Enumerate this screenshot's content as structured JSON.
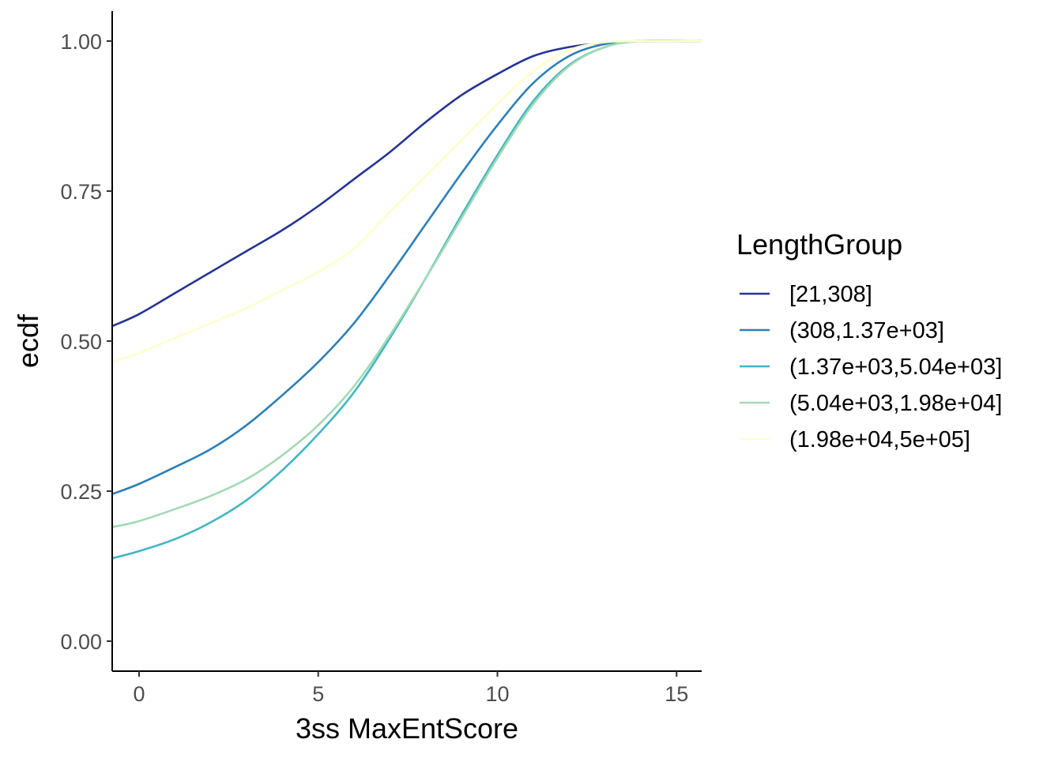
{
  "chart_data": {
    "type": "line",
    "title": "",
    "xlabel": "3ss MaxEntScore",
    "ylabel": "ecdf",
    "xlim": [
      -0.75,
      15.7
    ],
    "ylim": [
      -0.05,
      1.05
    ],
    "x_ticks": [
      0,
      5,
      10,
      15
    ],
    "x_tick_labels": [
      "0",
      "5",
      "10",
      "15"
    ],
    "y_ticks": [
      0,
      0.25,
      0.5,
      0.75,
      1.0
    ],
    "y_tick_labels": [
      "0.00",
      "0.25",
      "0.50",
      "0.75",
      "1.00"
    ],
    "grid": false,
    "legend": {
      "title": "LengthGroup",
      "position": "right"
    },
    "series": [
      {
        "name": "[21,308]",
        "color": "#253494",
        "x": [
          -0.75,
          0,
          1,
          2,
          3,
          4,
          5,
          6,
          7,
          8,
          9,
          10,
          11,
          12,
          13,
          14,
          15.7
        ],
        "y": [
          0.525,
          0.545,
          0.58,
          0.615,
          0.65,
          0.685,
          0.725,
          0.77,
          0.815,
          0.865,
          0.91,
          0.945,
          0.975,
          0.99,
          0.997,
          1.0,
          1.0
        ]
      },
      {
        "name": "(308,1.37e+03]",
        "color": "#2c7fb8",
        "x": [
          -0.75,
          0,
          1,
          2,
          3,
          4,
          5,
          6,
          7,
          8,
          9,
          10,
          11,
          12,
          13,
          14,
          15.7
        ],
        "y": [
          0.245,
          0.262,
          0.29,
          0.32,
          0.36,
          0.41,
          0.465,
          0.53,
          0.61,
          0.695,
          0.78,
          0.86,
          0.93,
          0.975,
          0.995,
          1.0,
          1.0
        ]
      },
      {
        "name": "(1.37e+03,5.04e+03]",
        "color": "#41b6c4",
        "x": [
          -0.75,
          0,
          1,
          2,
          3,
          4,
          5,
          6,
          7,
          8,
          9,
          10,
          11,
          12,
          13,
          14,
          15.7
        ],
        "y": [
          0.138,
          0.15,
          0.17,
          0.198,
          0.235,
          0.285,
          0.345,
          0.415,
          0.505,
          0.605,
          0.71,
          0.81,
          0.9,
          0.96,
          0.99,
          1.0,
          1.0
        ]
      },
      {
        "name": "(5.04e+03,1.98e+04]",
        "color": "#a1dab4",
        "x": [
          -0.75,
          0,
          1,
          2,
          3,
          4,
          5,
          6,
          7,
          8,
          9,
          10,
          11,
          12,
          13,
          14,
          15.7
        ],
        "y": [
          0.19,
          0.2,
          0.22,
          0.242,
          0.27,
          0.31,
          0.36,
          0.425,
          0.51,
          0.605,
          0.705,
          0.805,
          0.895,
          0.958,
          0.99,
          1.0,
          1.0
        ]
      },
      {
        "name": "(1.98e+04,5e+05]",
        "color": "#ffffcc",
        "x": [
          -0.75,
          0,
          1,
          2,
          3,
          4,
          5,
          6,
          7,
          8,
          9,
          10,
          11,
          12,
          13,
          14,
          15.7
        ],
        "y": [
          0.465,
          0.48,
          0.505,
          0.53,
          0.555,
          0.585,
          0.615,
          0.655,
          0.715,
          0.775,
          0.835,
          0.895,
          0.95,
          0.985,
          0.998,
          1.0,
          1.0
        ]
      }
    ]
  }
}
